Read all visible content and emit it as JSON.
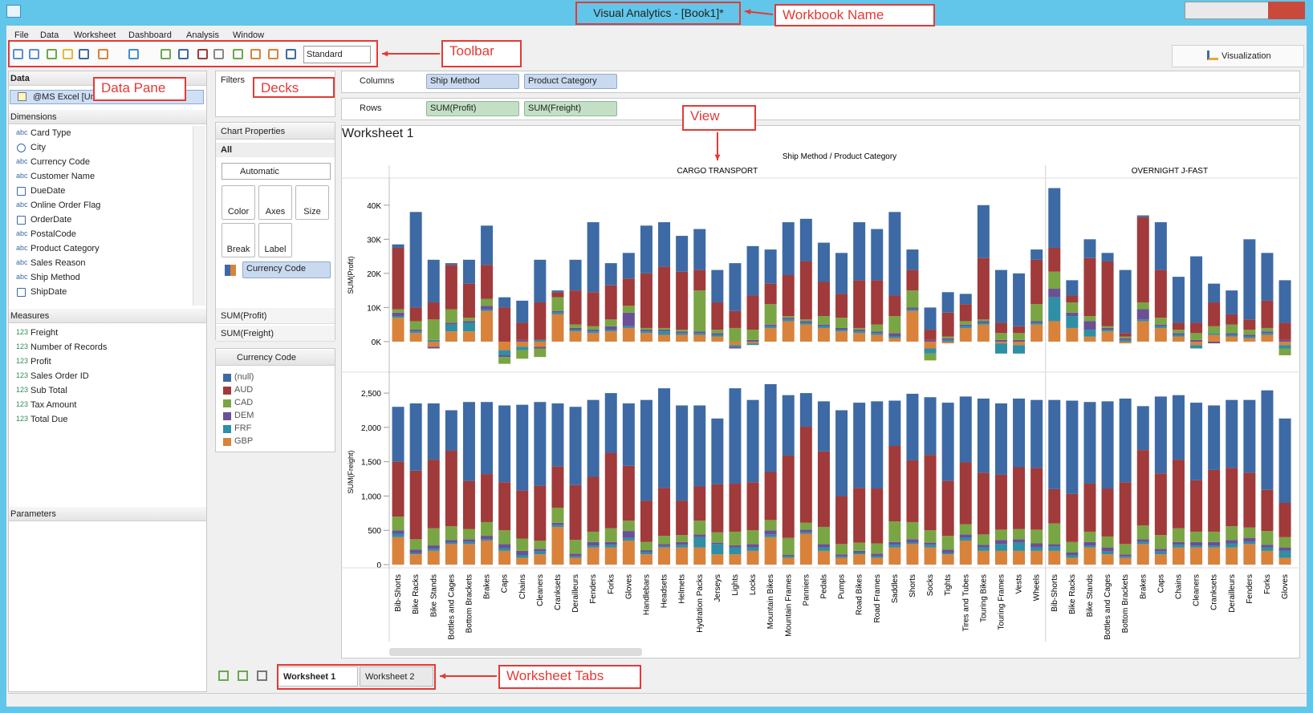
{
  "window": {
    "title": "Visual Analytics - [Book1]*"
  },
  "menu": [
    "File",
    "Data",
    "Worksheet",
    "Dashboard",
    "Analysis",
    "Window"
  ],
  "toolbar": {
    "mode": "Standard",
    "visualization": "Visualization"
  },
  "data_pane": {
    "title": "Data",
    "source": "@MS Excel [Unti",
    "dimensions_title": "Dimensions",
    "dimensions": [
      {
        "icon": "abc",
        "name": "Card Type"
      },
      {
        "name": "City"
      },
      {
        "icon": "abc",
        "name": "Currency Code"
      },
      {
        "icon": "abc",
        "name": "Customer Name"
      },
      {
        "name": "DueDate"
      },
      {
        "icon": "abc",
        "name": "Online Order Flag"
      },
      {
        "name": "OrderDate"
      },
      {
        "icon": "abc",
        "name": "PostalCode"
      },
      {
        "icon": "abc",
        "name": "Product Category"
      },
      {
        "icon": "abc",
        "name": "Sales Reason"
      },
      {
        "icon": "abc",
        "name": "Ship Method"
      },
      {
        "name": "ShipDate"
      }
    ],
    "measures_title": "Measures",
    "measures": [
      {
        "icon": "123",
        "name": "Freight"
      },
      {
        "icon": "123",
        "name": "Number of Records"
      },
      {
        "icon": "123",
        "name": "Profit"
      },
      {
        "icon": "123",
        "name": "Sales Order ID"
      },
      {
        "icon": "123",
        "name": "Sub Total"
      },
      {
        "icon": "123",
        "name": "Tax Amount"
      },
      {
        "icon": "123",
        "name": "Total Due"
      }
    ],
    "parameters_title": "Parameters"
  },
  "decks": {
    "filters": "Filters",
    "chart_properties": "Chart Properties",
    "all": "All",
    "mark_type": "Automatic",
    "buttons": [
      "Color",
      "Axes",
      "Size",
      "Break",
      "Label"
    ],
    "color_field": "Currency Code",
    "measures": [
      "SUM(Profit)",
      "SUM(Freight)"
    ],
    "legend_title": "Currency Code"
  },
  "shelves": {
    "columns_label": "Columns",
    "columns": [
      "Ship Method",
      "Product Category"
    ],
    "rows_label": "Rows",
    "rows": [
      "SUM(Profit)",
      "SUM(Freight)"
    ]
  },
  "view": {
    "title": "Worksheet 1"
  },
  "chart_data": {
    "type": "bar",
    "stacked": true,
    "title": "Ship Method / Product Category",
    "groups": [
      {
        "name": "CARGO TRANSPORT",
        "categories": [
          "Bib-Shorts",
          "Bike Racks",
          "Bike Stands",
          "Bottles and Cages",
          "Bottom Brackets",
          "Brakes",
          "Caps",
          "Chains",
          "Cleaners",
          "Cranksets",
          "Derailleurs",
          "Fenders",
          "Forks",
          "Gloves",
          "Handlebars",
          "Headsets",
          "Helmets",
          "Hydration Packs",
          "Jerseys",
          "Lights",
          "Locks",
          "Mountain Bikes",
          "Mountain Frames",
          "Panniers",
          "Pedals",
          "Pumps",
          "Road Bikes",
          "Road Frames",
          "Saddles",
          "Shorts",
          "Socks",
          "Tights",
          "Tires and Tubes",
          "Touring Bikes",
          "Touring Frames",
          "Vests",
          "Wheels"
        ]
      },
      {
        "name": "OVERNIGHT J-FAST",
        "categories": [
          "Bib-Shorts",
          "Bike Racks",
          "Bike Stands",
          "Bottles and Cages",
          "Bottom Brackets",
          "Brakes",
          "Caps",
          "Chains",
          "Cleaners",
          "Cranksets",
          "Derailleurs",
          "Fenders",
          "Forks",
          "Gloves"
        ]
      }
    ],
    "series": [
      {
        "name": "(null)",
        "color": "#3d6aa5"
      },
      {
        "name": "AUD",
        "color": "#a13a3a"
      },
      {
        "name": "CAD",
        "color": "#7aa544"
      },
      {
        "name": "DEM",
        "color": "#6a5096"
      },
      {
        "name": "FRF",
        "color": "#2e8fa5"
      },
      {
        "name": "GBP",
        "color": "#d9823b"
      }
    ],
    "panels": [
      {
        "y_label": "SUM(Profit)",
        "ylim": [
          -8000,
          47000
        ],
        "yticks": [
          {
            "value": 0,
            "label": "0K"
          },
          {
            "value": 10000,
            "label": "10K"
          },
          {
            "value": 20000,
            "label": "20K"
          },
          {
            "value": 30000,
            "label": "30K"
          },
          {
            "value": 40000,
            "label": "40K"
          }
        ],
        "values": [
          [
            1000,
            28000,
            12500,
            500,
            7000,
            11500,
            3000,
            6500,
            12500,
            500,
            9000,
            20500,
            6500,
            7500,
            14000,
            13000,
            10500,
            12000,
            9500,
            14000,
            14500,
            10000,
            15500,
            12500,
            11500,
            12000,
            17000,
            15000,
            24500,
            6000,
            6500,
            6000,
            3000,
            15500,
            15500,
            15500,
            3000,
            17500,
            4500,
            5500,
            2500,
            18500,
            500,
            14000,
            13500,
            19500,
            5500,
            7000,
            23500,
            14000,
            12500
          ],
          [
            18000,
            4000,
            5000,
            13000,
            10000,
            10000,
            10000,
            5000,
            11000,
            1500,
            10000,
            10000,
            10000,
            8000,
            16000,
            18000,
            17000,
            6000,
            8000,
            5000,
            10000,
            6000,
            12000,
            17000,
            10000,
            7000,
            14000,
            13000,
            6000,
            6000,
            3000,
            7000,
            5000,
            18000,
            3000,
            2000,
            13000,
            7000,
            2000,
            17000,
            19000,
            1000,
            25000,
            14000,
            2000,
            3000,
            7000,
            3000,
            3000,
            8000,
            5000
          ],
          [
            1000,
            2500,
            6000,
            4000,
            1000,
            2000,
            -2000,
            -2500,
            -2500,
            4000,
            1000,
            1000,
            2000,
            2000,
            500,
            500,
            500,
            12000,
            1000,
            4000,
            3000,
            6000,
            500,
            500,
            2500,
            3000,
            500,
            2000,
            5000,
            5000,
            -2000,
            500,
            1000,
            500,
            2000,
            2000,
            5000,
            5000,
            3000,
            1500,
            500,
            500,
            2000,
            2000,
            1000,
            2000,
            2000,
            2500,
            1500,
            1000,
            -2000
          ],
          [
            1000,
            500,
            -500,
            500,
            500,
            1000,
            -500,
            500,
            -500,
            500,
            500,
            500,
            1000,
            4000,
            500,
            500,
            500,
            500,
            500,
            -500,
            500,
            500,
            500,
            500,
            500,
            500,
            500,
            500,
            1000,
            500,
            500,
            500,
            500,
            500,
            500,
            500,
            500,
            2500,
            1000,
            2500,
            500,
            500,
            3000,
            500,
            500,
            500,
            -500,
            500,
            500,
            500,
            500
          ],
          [
            500,
            500,
            500,
            2000,
            2500,
            500,
            -1500,
            -1000,
            500,
            500,
            500,
            500,
            500,
            500,
            500,
            1000,
            500,
            500,
            500,
            -500,
            -500,
            500,
            500,
            500,
            500,
            500,
            500,
            500,
            500,
            500,
            -1500,
            500,
            500,
            500,
            -3000,
            -2500,
            500,
            7000,
            3500,
            2000,
            500,
            500,
            500,
            500,
            500,
            -1000,
            500,
            500,
            500,
            500,
            -1000
          ],
          [
            7000,
            2500,
            -1500,
            3000,
            3000,
            9000,
            -2500,
            -1500,
            -1500,
            8000,
            3000,
            2500,
            3000,
            4000,
            2500,
            2000,
            2000,
            2000,
            1500,
            -1000,
            -500,
            4000,
            6000,
            5000,
            4000,
            3000,
            2500,
            2000,
            1000,
            9000,
            -2000,
            -500,
            4000,
            5000,
            -500,
            -1000,
            5000,
            6000,
            4000,
            1500,
            3000,
            -500,
            6000,
            4000,
            1500,
            -1000,
            2000,
            1500,
            1000,
            2000,
            -1000
          ]
        ]
      },
      {
        "y_label": "SUM(Freight)",
        "ylim": [
          0,
          2700
        ],
        "yticks": [
          0,
          500,
          {
            "value": 1000,
            "label": "1,000"
          },
          {
            "value": 1500,
            "label": "1,500"
          },
          {
            "value": 2000,
            "label": "2,000"
          },
          {
            "value": 2500,
            "label": "2,500"
          }
        ],
        "values": [
          [
            800,
            980,
            820,
            590,
            1150,
            1050,
            1120,
            1250,
            1220,
            920,
            1140,
            1120,
            870,
            910,
            1470,
            1450,
            1390,
            1180,
            960,
            1390,
            1200,
            1280,
            880,
            490,
            730,
            1250,
            1240,
            1270,
            660,
            970,
            840,
            1140,
            960,
            1080,
            1040,
            1000,
            990,
            1300,
            1360,
            1190,
            1270,
            1220,
            640,
            1120,
            940,
            1130,
            940,
            990,
            1060,
            1450,
            1230
          ],
          [
            800,
            1000,
            1000,
            1100,
            700,
            700,
            700,
            700,
            800,
            600,
            800,
            800,
            1100,
            800,
            600,
            700,
            500,
            500,
            700,
            700,
            700,
            700,
            1200,
            1400,
            1100,
            700,
            800,
            800,
            1100,
            900,
            1100,
            800,
            900,
            900,
            800,
            900,
            900,
            500,
            700,
            700,
            700,
            900,
            1100,
            900,
            1000,
            750,
            900,
            850,
            800,
            600,
            500
          ],
          [
            200,
            150,
            250,
            200,
            150,
            200,
            200,
            180,
            120,
            220,
            200,
            150,
            200,
            150,
            120,
            120,
            100,
            200,
            150,
            200,
            200,
            150,
            250,
            100,
            250,
            150,
            120,
            150,
            300,
            250,
            180,
            200,
            150,
            150,
            150,
            150,
            200,
            300,
            150,
            150,
            160,
            150,
            200,
            200,
            200,
            150,
            150,
            200,
            150,
            200,
            150
          ],
          [
            50,
            50,
            50,
            40,
            40,
            50,
            60,
            60,
            40,
            30,
            40,
            50,
            40,
            100,
            30,
            30,
            40,
            40,
            20,
            30,
            50,
            60,
            20,
            40,
            50,
            30,
            30,
            40,
            40,
            50,
            30,
            50,
            50,
            40,
            60,
            50,
            60,
            40,
            40,
            50,
            60,
            30,
            40,
            40,
            40,
            50,
            50,
            50,
            60,
            40,
            50
          ],
          [
            50,
            20,
            30,
            20,
            30,
            20,
            40,
            40,
            40,
            30,
            20,
            30,
            40,
            40,
            30,
            20,
            40,
            150,
            150,
            100,
            50,
            40,
            20,
            20,
            50,
            20,
            20,
            20,
            40,
            20,
            40,
            20,
            40,
            50,
            100,
            120,
            50,
            60,
            40,
            30,
            40,
            20,
            30,
            40,
            40,
            30,
            30,
            60,
            30,
            50,
            100
          ],
          [
            400,
            150,
            200,
            300,
            300,
            350,
            200,
            100,
            150,
            550,
            100,
            250,
            250,
            350,
            150,
            250,
            250,
            250,
            150,
            150,
            200,
            400,
            100,
            450,
            200,
            100,
            150,
            100,
            250,
            300,
            250,
            150,
            350,
            200,
            200,
            200,
            200,
            200,
            100,
            250,
            150,
            100,
            300,
            150,
            250,
            250,
            250,
            250,
            300,
            200,
            100
          ]
        ]
      }
    ]
  },
  "tabs": [
    "Worksheet 1",
    "Worksheet 2"
  ],
  "annotations": [
    "Workbook Name",
    "Toolbar",
    "Data Pane",
    "Decks",
    "View",
    "Worksheet Tabs"
  ]
}
